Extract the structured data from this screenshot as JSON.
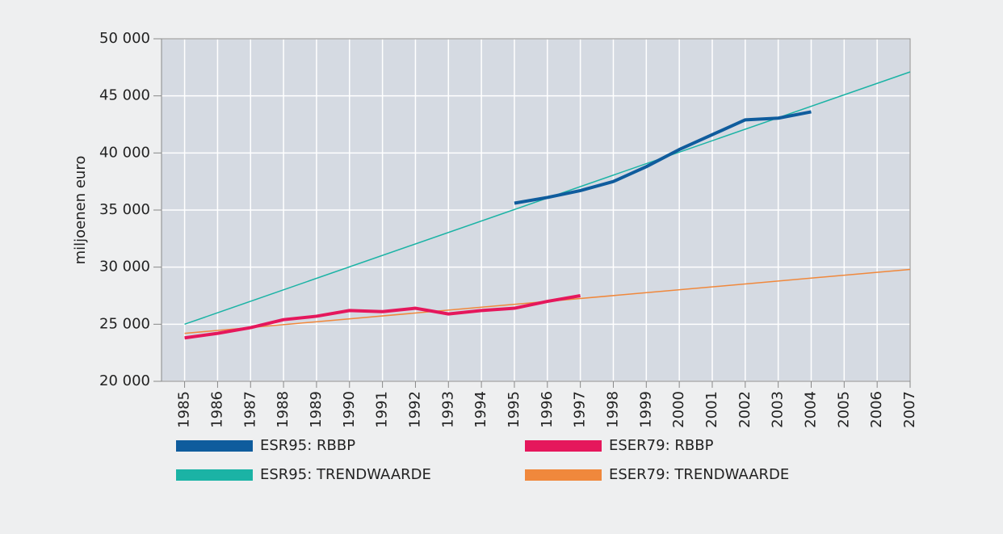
{
  "chart_data": {
    "type": "line",
    "y_label": "miljoenen euro",
    "xlim": [
      1984.3,
      2007
    ],
    "xticks": [
      1985,
      1986,
      1987,
      1988,
      1989,
      1990,
      1991,
      1992,
      1993,
      1994,
      1995,
      1996,
      1997,
      1998,
      1999,
      2000,
      2001,
      2002,
      2003,
      2004,
      2005,
      2006,
      2007
    ],
    "ylim": [
      20000,
      50000
    ],
    "yticks": [
      {
        "value": 20000,
        "label": "20 000"
      },
      {
        "value": 25000,
        "label": "25 000"
      },
      {
        "value": 30000,
        "label": "30 000"
      },
      {
        "value": 35000,
        "label": "35 000"
      },
      {
        "value": 40000,
        "label": "40 000"
      },
      {
        "value": 45000,
        "label": "45 000"
      },
      {
        "value": 50000,
        "label": "50 000"
      }
    ],
    "grid": true,
    "series": [
      {
        "name": "ESR95: RBBP",
        "color": "#0f5c9d",
        "width": 4,
        "x": [
          1995,
          1996,
          1997,
          1998,
          1999,
          2000,
          2001,
          2002,
          2003,
          2004
        ],
        "values": [
          35600,
          36100,
          36700,
          37500,
          38800,
          40300,
          41600,
          42900,
          43050,
          43600
        ]
      },
      {
        "name": "ESER79: RBBP",
        "color": "#e5175c",
        "width": 4,
        "x": [
          1985,
          1986,
          1987,
          1988,
          1989,
          1990,
          1991,
          1992,
          1993,
          1994,
          1995,
          1996,
          1997
        ],
        "values": [
          23800,
          24200,
          24700,
          25400,
          25700,
          26200,
          26100,
          26400,
          25900,
          26200,
          26400,
          27000,
          27500
        ]
      },
      {
        "name": "ESR95: TRENDWAARDE",
        "color": "#1bb3a5",
        "width": 1.5,
        "x": [
          1985,
          2007
        ],
        "values": [
          25000,
          47100
        ]
      },
      {
        "name": "ESER79: TRENDWAARDE",
        "color": "#f0883c",
        "width": 1.5,
        "x": [
          1985,
          2007
        ],
        "values": [
          24200,
          29800
        ]
      }
    ]
  }
}
